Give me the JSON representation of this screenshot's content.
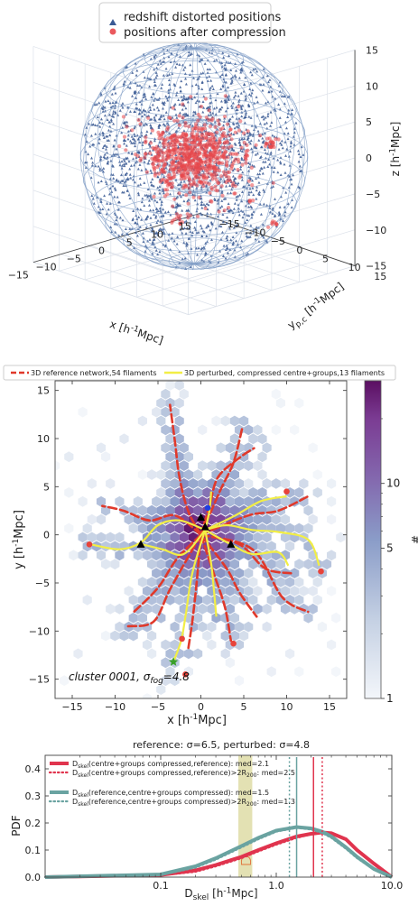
{
  "chart_data": [
    {
      "type": "scatter",
      "projection": "3d",
      "legend": [
        "redshift distorted positions",
        "positions after compression"
      ],
      "legend_position": "top-center",
      "xlabel": "x [h^{-1}Mpc]",
      "ylabel": "y_{p,c} [h^{-1}Mpc]",
      "zlabel": "z [h^{-1}Mpc]",
      "xticks": [
        "−15",
        "−10",
        "−5",
        "0",
        "5",
        "10",
        "15"
      ],
      "yticks": [
        "15",
        "10",
        "5",
        "0",
        "−5",
        "−10",
        "−15"
      ],
      "zticks": [
        "15",
        "10",
        "5",
        "0",
        "−5",
        "−10",
        "−15"
      ],
      "xlim": [
        -15,
        15
      ],
      "ylim": [
        -15,
        15
      ],
      "zlim": [
        -15,
        15
      ],
      "series": [
        {
          "name": "redshift distorted positions",
          "color": "#3b5a94",
          "marker": "triangle",
          "distribution": "uniform within sphere of radius 15"
        },
        {
          "name": "positions after compression",
          "color": "#e8474b",
          "marker": "circle",
          "distribution": "compact core of radius ~5 plus small outlying groups"
        }
      ],
      "wireframe_radii": [
        15,
        5
      ],
      "grid": true
    },
    {
      "type": "heatmap",
      "legend": [
        "3D reference network,54 filaments",
        "3D perturbed, compressed centre+groups,13 filaments"
      ],
      "legend_position": "top",
      "annotation": "cluster 0001, σ_{fog}=4.8",
      "xlabel": "x [h^{-1}Mpc]",
      "ylabel": "y [h^{-1}Mpc]",
      "xticks": [
        "−15",
        "−10",
        "−5",
        "0",
        "5",
        "10",
        "15"
      ],
      "yticks": [
        "15",
        "10",
        "5",
        "0",
        "−5",
        "−10",
        "−15"
      ],
      "xlim": [
        -17,
        17
      ],
      "ylim": [
        -17,
        16
      ],
      "colorbar": {
        "label": "#",
        "scale": "log",
        "ticks": [
          "1",
          "5",
          "10"
        ],
        "range": [
          1,
          30
        ]
      },
      "reference_filaments": [
        [
          [
            0,
            0
          ],
          [
            -1.5,
            2.5
          ],
          [
            -2.5,
            6
          ],
          [
            -3,
            9.5
          ],
          [
            -3.6,
            13.5
          ]
        ],
        [
          [
            0,
            0
          ],
          [
            -3,
            2
          ],
          [
            -6,
            1.5
          ],
          [
            -9,
            2.5
          ],
          [
            -11.5,
            3
          ]
        ],
        [
          [
            0,
            0
          ],
          [
            -2.8,
            -2.5
          ],
          [
            -5,
            -5.5
          ],
          [
            -7.8,
            -8
          ]
        ],
        [
          [
            0,
            0
          ],
          [
            -3.5,
            -5.5
          ],
          [
            -5.5,
            -9
          ],
          [
            -8.5,
            -9.5
          ]
        ],
        [
          [
            0,
            0
          ],
          [
            1,
            3
          ],
          [
            2,
            6
          ],
          [
            4.5,
            8
          ],
          [
            6.2,
            9
          ]
        ],
        [
          [
            0,
            0
          ],
          [
            2.2,
            4.5
          ],
          [
            3.8,
            7.5
          ],
          [
            4.8,
            11
          ]
        ],
        [
          [
            0,
            0
          ],
          [
            5.5,
            2
          ],
          [
            9,
            2.5
          ],
          [
            12.5,
            4
          ]
        ],
        [
          [
            0,
            0
          ],
          [
            4.5,
            -1
          ],
          [
            7.5,
            -3.5
          ],
          [
            10.5,
            -4
          ]
        ],
        [
          [
            0,
            0
          ],
          [
            3,
            -3.5
          ],
          [
            4.5,
            -6
          ],
          [
            6.5,
            -8.5
          ]
        ],
        [
          [
            0,
            0
          ],
          [
            1.5,
            -4
          ],
          [
            2.8,
            -7.5
          ],
          [
            3.5,
            -11
          ]
        ],
        [
          [
            0,
            0
          ],
          [
            6,
            -1.5
          ],
          [
            9.5,
            -6.5
          ],
          [
            12.5,
            -8
          ]
        ],
        [
          [
            0,
            0
          ],
          [
            -0.5,
            -5
          ],
          [
            -1,
            -9
          ],
          [
            -1.5,
            -12
          ]
        ]
      ],
      "perturbed_filaments": [
        [
          [
            0.5,
            0.5
          ],
          [
            -2.5,
            1.5
          ],
          [
            -5,
            1
          ],
          [
            -7,
            -0.8
          ],
          [
            -9.5,
            -1.5
          ],
          [
            -12.8,
            -1
          ]
        ],
        [
          [
            0.5,
            0.5
          ],
          [
            -2,
            -2
          ],
          [
            -4.5,
            -1.5
          ],
          [
            -6.8,
            -1
          ]
        ],
        [
          [
            0.5,
            0.5
          ],
          [
            -1,
            -4
          ],
          [
            -1.8,
            -8.5
          ],
          [
            -2.3,
            -11
          ],
          [
            -3.2,
            -13.2
          ]
        ],
        [
          [
            0.5,
            0.5
          ],
          [
            1.2,
            -3
          ],
          [
            1.5,
            -5.5
          ],
          [
            1.8,
            -8.5
          ]
        ],
        [
          [
            0.5,
            0.5
          ],
          [
            3,
            1
          ],
          [
            6,
            0.5
          ],
          [
            9,
            0.3
          ],
          [
            12.5,
            -0.5
          ],
          [
            13.8,
            -3.2
          ]
        ],
        [
          [
            0.5,
            0.5
          ],
          [
            3.5,
            -1
          ],
          [
            6,
            -2
          ],
          [
            9,
            -1.8
          ],
          [
            10.2,
            -3.2
          ]
        ],
        [
          [
            0.5,
            0.5
          ],
          [
            1,
            2.5
          ],
          [
            1.2,
            4.5
          ]
        ],
        [
          [
            0.5,
            0.5
          ],
          [
            4,
            2
          ],
          [
            7,
            3.5
          ],
          [
            10,
            4
          ]
        ]
      ],
      "group_markers": [
        {
          "x": -7,
          "y": -1,
          "color": "#000000",
          "marker": "triangle"
        },
        {
          "x": 0,
          "y": 1.8,
          "color": "#000000",
          "marker": "triangle"
        },
        {
          "x": 0.5,
          "y": 0.8,
          "color": "#000000",
          "marker": "triangle"
        },
        {
          "x": 3.5,
          "y": -1,
          "color": "#000000",
          "marker": "triangle"
        },
        {
          "x": 0.8,
          "y": 2.8,
          "color": "#1f3fe0",
          "marker": "circle"
        },
        {
          "x": -3.2,
          "y": -13.2,
          "color": "#3aa02a",
          "marker": "star"
        }
      ],
      "endpoints": [
        [
          -13,
          -1
        ],
        [
          14,
          -3.8
        ],
        [
          10,
          4.5
        ],
        [
          -2.2,
          -10.8
        ],
        [
          3.8,
          -11.3
        ],
        [
          -1.8,
          -14.5
        ]
      ]
    },
    {
      "type": "line",
      "title": "reference: σ=6.5, perturbed: σ=4.8",
      "xlabel": "D_{skel} [h^{-1}Mpc]",
      "ylabel": "PDF",
      "xscale": "log",
      "xlim": [
        0.01,
        10
      ],
      "ylim": [
        0,
        0.45
      ],
      "xticks": [
        "0.1",
        "1.0",
        "10.0"
      ],
      "yticks": [
        "0.0",
        "0.1",
        "0.2",
        "0.3",
        "0.4"
      ],
      "legend_position": "upper-left",
      "series": [
        {
          "name": "D_{skel}(centre+groups compressed,reference): med=2.1",
          "color": "#e0344e",
          "style": "solid",
          "x": [
            0.01,
            0.1,
            0.2,
            0.3,
            0.5,
            0.7,
            1.0,
            1.5,
            2.0,
            2.5,
            3.0,
            4.0,
            5.0,
            7.0,
            10.0
          ],
          "y": [
            0.0,
            0.008,
            0.025,
            0.045,
            0.075,
            0.1,
            0.125,
            0.15,
            0.16,
            0.165,
            0.162,
            0.14,
            0.1,
            0.05,
            0.0
          ]
        },
        {
          "name": "D_{skel}(centre+groups compressed,reference)>2R_{200}: med=2.5",
          "color": "#e0344e",
          "style": "dotted",
          "x": [
            0.01,
            0.1,
            0.2,
            0.3,
            0.5,
            0.7,
            1.0,
            1.5,
            2.0,
            2.5,
            3.0,
            4.0,
            5.0,
            7.0,
            10.0
          ],
          "y": [
            0.0,
            0.006,
            0.02,
            0.04,
            0.07,
            0.095,
            0.12,
            0.145,
            0.158,
            0.163,
            0.16,
            0.14,
            0.1,
            0.05,
            0.0
          ]
        },
        {
          "name": "D_{skel}(reference,centre+groups compressed): med=1.5",
          "color": "#6aa3a1",
          "style": "solid",
          "x": [
            0.01,
            0.1,
            0.2,
            0.3,
            0.5,
            0.7,
            1.0,
            1.5,
            2.0,
            2.5,
            3.0,
            4.0,
            5.0,
            7.0,
            10.0
          ],
          "y": [
            0.0,
            0.01,
            0.04,
            0.07,
            0.115,
            0.145,
            0.172,
            0.185,
            0.18,
            0.168,
            0.15,
            0.11,
            0.075,
            0.03,
            0.0
          ]
        },
        {
          "name": "D_{skel}(reference,centre+groups compressed)>2R_{200}: med=1.3",
          "color": "#6aa3a1",
          "style": "dotted",
          "x": [
            0.01,
            0.1,
            0.2,
            0.3,
            0.5,
            0.7,
            1.0,
            1.5,
            2.0,
            2.5,
            3.0,
            4.0,
            5.0,
            7.0,
            10.0
          ],
          "y": [
            0.0,
            0.008,
            0.035,
            0.065,
            0.11,
            0.14,
            0.168,
            0.182,
            0.176,
            0.163,
            0.145,
            0.105,
            0.07,
            0.028,
            0.0
          ]
        }
      ],
      "vertical_lines": [
        {
          "x": 2.1,
          "color": "#e0344e",
          "style": "solid"
        },
        {
          "x": 2.5,
          "color": "#e0344e",
          "style": "dotted"
        },
        {
          "x": 1.5,
          "color": "#6aa3a1",
          "style": "solid"
        },
        {
          "x": 1.3,
          "color": "#6aa3a1",
          "style": "dotted"
        }
      ],
      "shaded_band": {
        "x": [
          0.47,
          0.62
        ],
        "color": "#d9d79a"
      }
    }
  ]
}
